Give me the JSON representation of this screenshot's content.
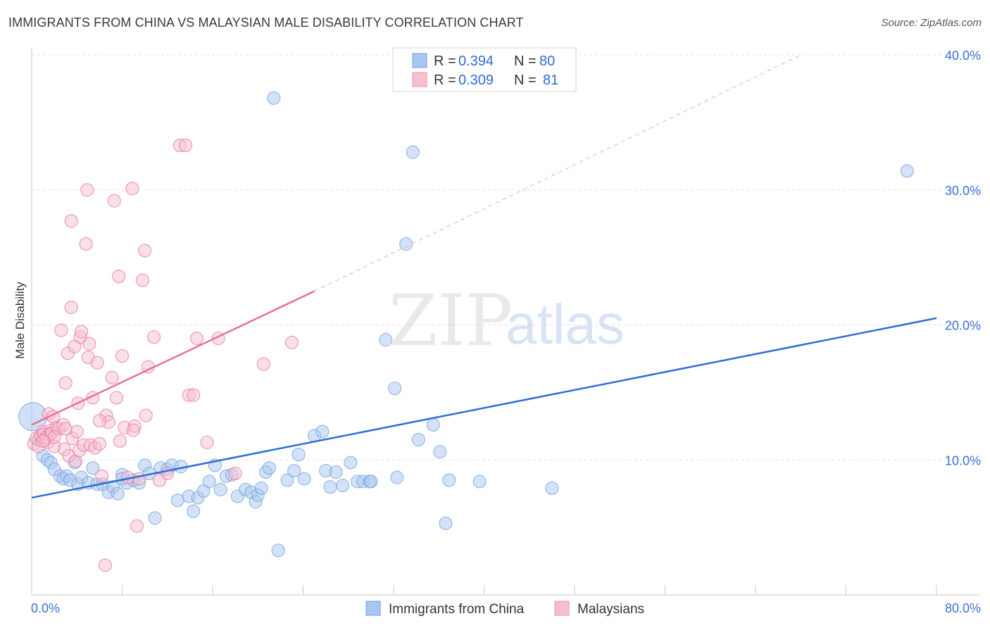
{
  "header": {
    "title": "IMMIGRANTS FROM CHINA VS MALAYSIAN MALE DISABILITY CORRELATION CHART",
    "source": "Source: ZipAtlas.com"
  },
  "watermark": {
    "zip": "ZIP",
    "atlas": "atlas"
  },
  "legend": {
    "rows": [
      {
        "r_label": "R = ",
        "r_value": "0.394",
        "n_label": "N = ",
        "n_value": "80",
        "color": "#a9c6f0",
        "stroke": "#6f9fe0"
      },
      {
        "r_label": "R = ",
        "r_value": "0.309",
        "n_label": "N = ",
        "n_value": "81",
        "color": "#f6bfd0",
        "stroke": "#ec8fae"
      }
    ]
  },
  "bottom_legend": [
    {
      "label": "Immigrants from China",
      "color": "#a9c6f0",
      "stroke": "#6f9fe0"
    },
    {
      "label": "Malaysians",
      "color": "#f6bfd0",
      "stroke": "#ec8fae"
    }
  ],
  "chart_data": {
    "type": "scatter",
    "title": "IMMIGRANTS FROM CHINA VS MALAYSIAN MALE DISABILITY CORRELATION CHART",
    "xlabel": "",
    "ylabel": "Male Disability",
    "xlim": [
      0,
      80
    ],
    "ylim": [
      0,
      40
    ],
    "x_tick_labels": [
      "0.0%",
      "80.0%"
    ],
    "y_ticks": [
      10,
      20,
      30,
      40
    ],
    "y_tick_labels": [
      "10.0%",
      "20.0%",
      "30.0%",
      "40.0%"
    ],
    "grid": true,
    "series": [
      {
        "name": "Immigrants from China",
        "color": "#6f9fe0",
        "fill": "#a9c6f0",
        "trend": {
          "x": [
            0,
            80
          ],
          "y": [
            7.2,
            20.5
          ],
          "style": "solid"
        },
        "points": [
          [
            0.1,
            13.2
          ],
          [
            0.6,
            11.5
          ],
          [
            1.0,
            10.3
          ],
          [
            1.4,
            10.0
          ],
          [
            1.7,
            9.8
          ],
          [
            2.0,
            9.3
          ],
          [
            2.5,
            8.8
          ],
          [
            2.8,
            8.6
          ],
          [
            3.1,
            8.8
          ],
          [
            3.4,
            8.5
          ],
          [
            3.8,
            9.8
          ],
          [
            4.1,
            8.2
          ],
          [
            4.4,
            8.7
          ],
          [
            5.0,
            8.3
          ],
          [
            5.4,
            9.4
          ],
          [
            5.8,
            8.2
          ],
          [
            6.3,
            8.2
          ],
          [
            6.8,
            7.6
          ],
          [
            7.2,
            8.0
          ],
          [
            7.6,
            7.5
          ],
          [
            8.0,
            8.9
          ],
          [
            8.4,
            8.3
          ],
          [
            9.0,
            8.5
          ],
          [
            9.5,
            8.3
          ],
          [
            10.0,
            9.6
          ],
          [
            10.4,
            9.0
          ],
          [
            10.9,
            5.7
          ],
          [
            11.4,
            9.4
          ],
          [
            12.0,
            9.3
          ],
          [
            12.4,
            9.6
          ],
          [
            12.9,
            7.0
          ],
          [
            13.2,
            9.5
          ],
          [
            13.9,
            7.3
          ],
          [
            14.3,
            6.2
          ],
          [
            14.7,
            7.2
          ],
          [
            15.2,
            7.7
          ],
          [
            15.7,
            8.4
          ],
          [
            16.2,
            9.6
          ],
          [
            16.7,
            7.8
          ],
          [
            17.2,
            8.8
          ],
          [
            17.7,
            8.9
          ],
          [
            18.2,
            7.3
          ],
          [
            18.9,
            7.8
          ],
          [
            19.4,
            7.6
          ],
          [
            19.8,
            6.9
          ],
          [
            20.0,
            7.4
          ],
          [
            20.3,
            7.9
          ],
          [
            20.7,
            9.1
          ],
          [
            21.0,
            9.4
          ],
          [
            21.4,
            36.8
          ],
          [
            21.8,
            3.3
          ],
          [
            22.6,
            8.5
          ],
          [
            23.2,
            9.2
          ],
          [
            23.6,
            10.4
          ],
          [
            24.1,
            8.6
          ],
          [
            25.0,
            11.8
          ],
          [
            25.7,
            12.1
          ],
          [
            26.0,
            9.2
          ],
          [
            26.4,
            8.0
          ],
          [
            26.9,
            9.1
          ],
          [
            27.5,
            8.1
          ],
          [
            28.2,
            9.8
          ],
          [
            28.8,
            8.4
          ],
          [
            29.3,
            8.4
          ],
          [
            29.9,
            8.4
          ],
          [
            30.0,
            8.4
          ],
          [
            31.3,
            18.9
          ],
          [
            32.1,
            15.3
          ],
          [
            32.3,
            8.7
          ],
          [
            33.1,
            26.0
          ],
          [
            33.7,
            32.8
          ],
          [
            34.2,
            11.5
          ],
          [
            35.5,
            12.6
          ],
          [
            36.1,
            10.6
          ],
          [
            36.6,
            5.3
          ],
          [
            36.9,
            8.5
          ],
          [
            39.6,
            8.4
          ],
          [
            46.0,
            7.9
          ],
          [
            77.4,
            31.4
          ],
          [
            8.0,
            8.6
          ]
        ]
      },
      {
        "name": "Malaysians",
        "color": "#e8709a",
        "fill": "#f6bfd0",
        "trend": {
          "x": [
            0,
            25
          ],
          "y": [
            12.6,
            22.5
          ],
          "style": "solid"
        },
        "trend_ext": {
          "x": [
            25,
            68
          ],
          "y": [
            22.5,
            40.0
          ],
          "style": "dashed"
        },
        "points": [
          [
            0.2,
            11.2
          ],
          [
            0.4,
            11.6
          ],
          [
            0.6,
            11.0
          ],
          [
            0.8,
            11.8
          ],
          [
            1.0,
            12.1
          ],
          [
            1.1,
            11.9
          ],
          [
            1.2,
            11.5
          ],
          [
            1.3,
            11.7
          ],
          [
            1.4,
            11.3
          ],
          [
            1.5,
            13.4
          ],
          [
            1.6,
            11.9
          ],
          [
            1.7,
            12.2
          ],
          [
            1.8,
            12.0
          ],
          [
            1.9,
            13.2
          ],
          [
            2.0,
            11.0
          ],
          [
            2.2,
            12.4
          ],
          [
            2.4,
            12.3
          ],
          [
            2.6,
            19.6
          ],
          [
            2.8,
            12.6
          ],
          [
            2.9,
            10.8
          ],
          [
            3.0,
            15.7
          ],
          [
            3.2,
            17.9
          ],
          [
            3.3,
            10.3
          ],
          [
            3.5,
            21.3
          ],
          [
            3.5,
            27.7
          ],
          [
            3.6,
            11.6
          ],
          [
            3.8,
            18.4
          ],
          [
            3.9,
            9.9
          ],
          [
            4.1,
            14.2
          ],
          [
            4.2,
            10.7
          ],
          [
            4.3,
            19.1
          ],
          [
            4.4,
            19.5
          ],
          [
            4.6,
            11.1
          ],
          [
            4.8,
            26.0
          ],
          [
            4.9,
            30.0
          ],
          [
            5.0,
            17.6
          ],
          [
            5.1,
            18.6
          ],
          [
            5.2,
            11.1
          ],
          [
            5.4,
            14.6
          ],
          [
            5.6,
            10.9
          ],
          [
            5.8,
            17.2
          ],
          [
            6.0,
            11.2
          ],
          [
            6.2,
            8.8
          ],
          [
            6.5,
            2.2
          ],
          [
            6.6,
            13.3
          ],
          [
            6.8,
            12.8
          ],
          [
            7.1,
            16.1
          ],
          [
            7.3,
            29.2
          ],
          [
            7.5,
            14.6
          ],
          [
            7.7,
            23.6
          ],
          [
            7.8,
            11.4
          ],
          [
            8.0,
            17.7
          ],
          [
            8.2,
            12.4
          ],
          [
            8.5,
            8.7
          ],
          [
            8.9,
            30.1
          ],
          [
            9.1,
            12.5
          ],
          [
            9.3,
            5.1
          ],
          [
            9.5,
            8.6
          ],
          [
            9.8,
            23.3
          ],
          [
            10.0,
            25.5
          ],
          [
            10.1,
            13.3
          ],
          [
            10.3,
            16.9
          ],
          [
            10.8,
            19.1
          ],
          [
            11.3,
            8.5
          ],
          [
            13.1,
            33.3
          ],
          [
            13.6,
            33.3
          ],
          [
            13.9,
            14.8
          ],
          [
            14.3,
            14.8
          ],
          [
            14.6,
            19.0
          ],
          [
            15.5,
            11.3
          ],
          [
            16.5,
            19.0
          ],
          [
            18.0,
            9.0
          ],
          [
            20.5,
            17.1
          ],
          [
            23.0,
            18.7
          ],
          [
            4.0,
            12.1
          ],
          [
            2.0,
            11.7
          ],
          [
            1.0,
            11.4
          ],
          [
            3.0,
            12.3
          ],
          [
            6.0,
            12.9
          ],
          [
            12.0,
            9.0
          ],
          [
            9.0,
            12.2
          ]
        ]
      }
    ]
  }
}
